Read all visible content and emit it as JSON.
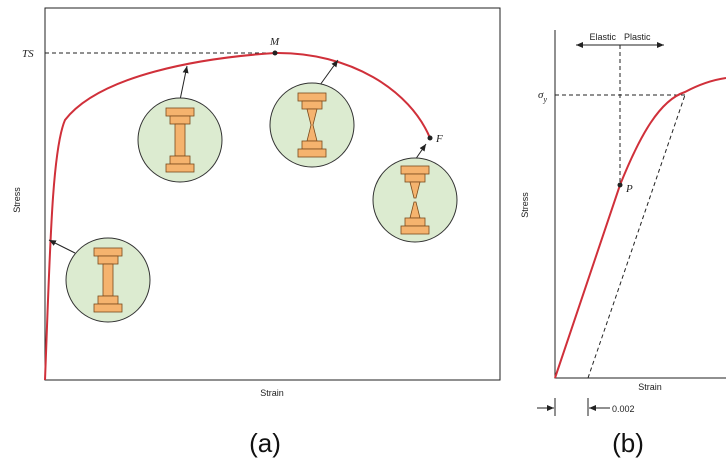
{
  "panel_a": {
    "ts": "TS",
    "m": "M",
    "f": "F",
    "y_label": "Stress",
    "x_label": "Strain",
    "caption": "(a)"
  },
  "panel_b": {
    "elastic": "Elastic",
    "plastic": "Plastic",
    "sigma": "σ",
    "sigma_sub": "y",
    "p": "P",
    "y_label": "Stress",
    "x_label": "Strain",
    "offset": "0.002",
    "caption": "(b)"
  }
}
